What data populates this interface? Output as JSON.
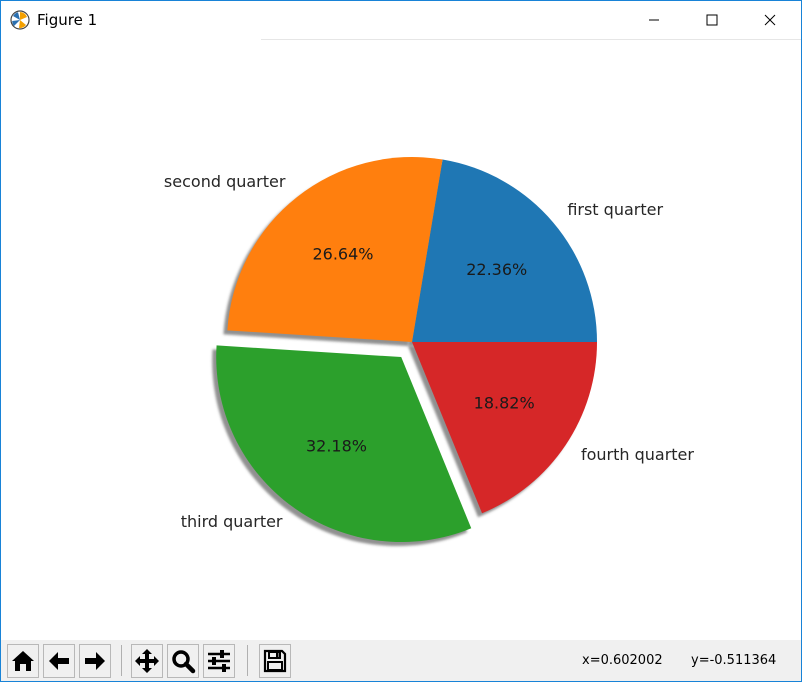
{
  "window": {
    "title": "Figure 1",
    "controls": [
      "minimize",
      "maximize",
      "close"
    ]
  },
  "toolbar": {
    "buttons": [
      {
        "name": "home",
        "icon": "home-icon"
      },
      {
        "name": "back",
        "icon": "arrow-left-icon"
      },
      {
        "name": "forward",
        "icon": "arrow-right-icon"
      },
      {
        "name": "pan",
        "icon": "move-icon"
      },
      {
        "name": "zoom",
        "icon": "magnifier-icon"
      },
      {
        "name": "subplots",
        "icon": "sliders-icon"
      },
      {
        "name": "save",
        "icon": "floppy-disk-icon"
      }
    ],
    "x_readout": "x=0.602002",
    "y_readout": "y=-0.511364"
  },
  "chart_data": {
    "type": "pie",
    "title": "",
    "labels": [
      "first quarter",
      "second quarter",
      "third quarter",
      "fourth quarter"
    ],
    "values": [
      22.36,
      26.64,
      32.18,
      18.82
    ],
    "pct_labels": [
      "22.36%",
      "26.64%",
      "32.18%",
      "18.82%"
    ],
    "colors": [
      "#1f77b4",
      "#ff7f0e",
      "#2ca02c",
      "#d62728"
    ],
    "explode": [
      0,
      0,
      0.1,
      0
    ],
    "shadow": true,
    "start_angle": 0,
    "counterclock": true
  }
}
